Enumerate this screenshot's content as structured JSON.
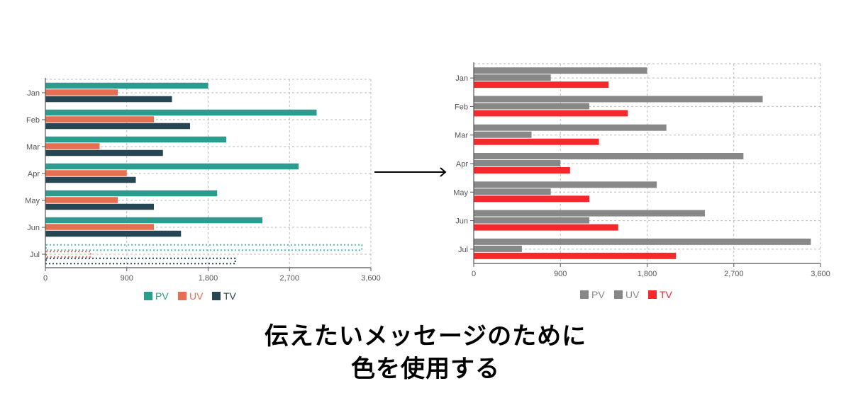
{
  "chart_data": [
    {
      "type": "bar",
      "orientation": "horizontal",
      "title": "",
      "categories": [
        "Jan",
        "Feb",
        "Mar",
        "Apr",
        "May",
        "Jun",
        "Jul"
      ],
      "series": [
        {
          "name": "PV",
          "color": "#2a9d8f",
          "values": [
            1800,
            3000,
            2000,
            2800,
            1900,
            2400,
            3500
          ]
        },
        {
          "name": "UV",
          "color": "#e76f51",
          "values": [
            800,
            1200,
            600,
            900,
            800,
            1200,
            500
          ]
        },
        {
          "name": "TV",
          "color": "#264653",
          "values": [
            1400,
            1600,
            1300,
            1000,
            1200,
            1500,
            2100
          ]
        }
      ],
      "xlim": [
        0,
        3600
      ],
      "xticks": [
        "0",
        "900",
        "1,800",
        "2,700",
        "3,600"
      ],
      "grid": true,
      "legend_position": "bottom",
      "annotation": "Jul bars rendered as dotted outlines (no fill)"
    },
    {
      "type": "bar",
      "orientation": "horizontal",
      "title": "",
      "categories": [
        "Jan",
        "Feb",
        "Mar",
        "Apr",
        "May",
        "Jun",
        "Jul"
      ],
      "series": [
        {
          "name": "PV",
          "color": "#888888",
          "values": [
            1800,
            3000,
            2000,
            2800,
            1900,
            2400,
            3500
          ]
        },
        {
          "name": "UV",
          "color": "#888888",
          "values": [
            800,
            1200,
            600,
            900,
            800,
            1200,
            500
          ]
        },
        {
          "name": "TV",
          "color": "#f5292d",
          "values": [
            1400,
            1600,
            1300,
            1000,
            1200,
            1500,
            2100
          ]
        }
      ],
      "xlim": [
        0,
        3600
      ],
      "xticks": [
        "0",
        "900",
        "1,800",
        "2,700",
        "3,600"
      ],
      "grid": true,
      "legend_position": "bottom"
    }
  ],
  "caption": {
    "line1": "伝えたいメッセージのために",
    "line2": "色を使用する"
  }
}
